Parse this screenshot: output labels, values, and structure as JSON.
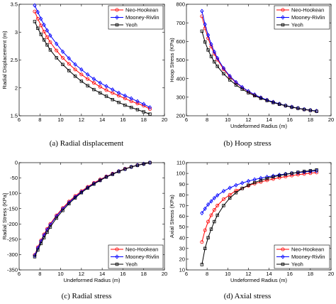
{
  "figure": {
    "panels": [
      {
        "caption": "(a) Radial displacement"
      },
      {
        "caption": "(b) Hoop stress"
      },
      {
        "caption": "(c) Radial stress"
      },
      {
        "caption": "(d) Axial stress"
      }
    ]
  },
  "chart_data": [
    {
      "type": "line",
      "title": "",
      "caption": "(a) Radial displacement",
      "xlabel": "",
      "ylabel": "Radial Displacement (m)",
      "xlim": [
        6,
        20
      ],
      "ylim": [
        1.5,
        3.5
      ],
      "xticks": [
        6,
        8,
        10,
        12,
        14,
        16,
        18,
        20
      ],
      "yticks": [
        1.5,
        2,
        2.5,
        3,
        3.5
      ],
      "grid": false,
      "legend": "top-right",
      "x": [
        7.5,
        7.8,
        8.1,
        8.4,
        8.7,
        9.0,
        9.6,
        10.2,
        10.8,
        11.4,
        12.0,
        12.6,
        13.2,
        13.8,
        14.4,
        15.0,
        15.6,
        16.2,
        16.8,
        17.4,
        18.0,
        18.6
      ],
      "series": [
        {
          "name": "Neo-Hookean",
          "color": "#ff0000",
          "marker": "circle",
          "values": [
            3.37,
            3.24,
            3.12,
            3.01,
            2.91,
            2.82,
            2.67,
            2.54,
            2.43,
            2.33,
            2.24,
            2.16,
            2.09,
            2.02,
            1.96,
            1.91,
            1.86,
            1.81,
            1.76,
            1.72,
            1.68,
            1.62
          ]
        },
        {
          "name": "Mooney-Rivlin",
          "color": "#0000ff",
          "marker": "diamond",
          "values": [
            3.48,
            3.36,
            3.24,
            3.13,
            3.03,
            2.94,
            2.79,
            2.65,
            2.53,
            2.42,
            2.33,
            2.24,
            2.16,
            2.09,
            2.03,
            1.97,
            1.91,
            1.86,
            1.81,
            1.76,
            1.71,
            1.65
          ]
        },
        {
          "name": "Yeoh",
          "color": "#000000",
          "marker": "square",
          "values": [
            3.19,
            3.07,
            2.96,
            2.86,
            2.77,
            2.68,
            2.54,
            2.42,
            2.31,
            2.21,
            2.12,
            2.04,
            1.97,
            1.91,
            1.85,
            1.79,
            1.74,
            1.69,
            1.65,
            1.61,
            1.57,
            1.53
          ]
        }
      ]
    },
    {
      "type": "line",
      "title": "",
      "caption": "(b) Hoop stress",
      "xlabel": "Undeformed Radius (m)",
      "ylabel": "Hoop Stress (KPa)",
      "xlim": [
        6,
        20
      ],
      "ylim": [
        200,
        800
      ],
      "xticks": [
        6,
        8,
        10,
        12,
        14,
        16,
        18,
        20
      ],
      "yticks": [
        200,
        300,
        400,
        500,
        600,
        700,
        800
      ],
      "grid": false,
      "legend": "top-right",
      "x": [
        7.5,
        7.8,
        8.1,
        8.4,
        8.7,
        9.0,
        9.6,
        10.2,
        10.8,
        11.4,
        12.0,
        12.6,
        13.2,
        13.8,
        14.4,
        15.0,
        15.6,
        16.2,
        16.8,
        17.4,
        18.0,
        18.6
      ],
      "series": [
        {
          "name": "Neo-Hookean",
          "color": "#ff0000",
          "marker": "circle",
          "values": [
            735,
            670,
            617,
            572,
            534,
            502,
            450,
            410,
            378,
            352,
            330,
            312,
            297,
            284,
            273,
            263,
            254,
            247,
            240,
            234,
            229,
            225
          ]
        },
        {
          "name": "Mooney-Rivlin",
          "color": "#0000ff",
          "marker": "diamond",
          "values": [
            763,
            692,
            634,
            585,
            544,
            510,
            456,
            414,
            381,
            354,
            332,
            314,
            298,
            285,
            274,
            264,
            255,
            248,
            241,
            235,
            230,
            226
          ]
        },
        {
          "name": "Yeoh",
          "color": "#000000",
          "marker": "square",
          "values": [
            655,
            597,
            554,
            519,
            490,
            466,
            426,
            393,
            366,
            343,
            324,
            308,
            294,
            282,
            271,
            262,
            254,
            246,
            240,
            234,
            229,
            224
          ]
        }
      ]
    },
    {
      "type": "line",
      "title": "",
      "caption": "(c) Radial stress",
      "xlabel": "Undeformed Radius (m)",
      "ylabel": "Radial Stress (KPa)",
      "xlim": [
        6,
        20
      ],
      "ylim": [
        -350,
        0
      ],
      "xticks": [
        6,
        8,
        10,
        12,
        14,
        16,
        18,
        20
      ],
      "yticks": [
        -350,
        -300,
        -250,
        -200,
        -150,
        -100,
        -50,
        0
      ],
      "grid": false,
      "legend": "bottom-right",
      "x": [
        7.5,
        7.8,
        8.1,
        8.4,
        8.7,
        9.0,
        9.6,
        10.2,
        10.8,
        11.4,
        12.0,
        12.6,
        13.2,
        13.8,
        14.4,
        15.0,
        15.6,
        16.2,
        16.8,
        17.4,
        18.0,
        18.6
      ],
      "series": [
        {
          "name": "Neo-Hookean",
          "color": "#ff0000",
          "marker": "circle",
          "values": [
            -301,
            -276,
            -254,
            -234,
            -216,
            -200,
            -172,
            -148,
            -127,
            -109,
            -93,
            -79,
            -66,
            -55,
            -45,
            -36,
            -28,
            -20,
            -14,
            -8,
            -4,
            0
          ]
        },
        {
          "name": "Mooney-Rivlin",
          "color": "#0000ff",
          "marker": "diamond",
          "values": [
            -303,
            -279,
            -257,
            -237,
            -219,
            -203,
            -175,
            -151,
            -130,
            -112,
            -96,
            -81,
            -68,
            -57,
            -46,
            -37,
            -28,
            -21,
            -14,
            -8,
            -4,
            0
          ]
        },
        {
          "name": "Yeoh",
          "color": "#000000",
          "marker": "square",
          "values": [
            -307,
            -285,
            -264,
            -245,
            -227,
            -210,
            -181,
            -156,
            -134,
            -115,
            -98,
            -83,
            -70,
            -58,
            -47,
            -38,
            -29,
            -21,
            -14,
            -9,
            -4,
            0
          ]
        }
      ]
    },
    {
      "type": "line",
      "title": "",
      "caption": "(d) Axial stress",
      "xlabel": "Undeformed Radius (m)",
      "ylabel": "Axial Stress (KPa)",
      "xlim": [
        6,
        20
      ],
      "ylim": [
        10,
        110
      ],
      "xticks": [
        6,
        8,
        10,
        12,
        14,
        16,
        18,
        20
      ],
      "yticks": [
        10,
        20,
        30,
        40,
        50,
        60,
        70,
        80,
        90,
        100,
        110
      ],
      "grid": false,
      "legend": "bottom-right",
      "x": [
        7.5,
        7.8,
        8.1,
        8.4,
        8.7,
        9.0,
        9.6,
        10.2,
        10.8,
        11.4,
        12.0,
        12.6,
        13.2,
        13.8,
        14.4,
        15.0,
        15.6,
        16.2,
        16.8,
        17.4,
        18.0,
        18.6
      ],
      "series": [
        {
          "name": "Neo-Hookean",
          "color": "#ff0000",
          "marker": "circle",
          "values": [
            36,
            47,
            55,
            61,
            66,
            70,
            76,
            80,
            84,
            86,
            88.5,
            90.5,
            92,
            93.5,
            94.8,
            96,
            97,
            98,
            98.8,
            99.5,
            100.2,
            100.8
          ]
        },
        {
          "name": "Mooney-Rivlin",
          "color": "#0000ff",
          "marker": "diamond",
          "values": [
            63,
            67,
            71,
            74,
            77,
            79.5,
            83.5,
            86.5,
            89,
            91,
            92.8,
            94.3,
            95.6,
            96.7,
            97.7,
            98.6,
            99.4,
            100.1,
            100.7,
            101.3,
            101.9,
            102.4
          ]
        },
        {
          "name": "Yeoh",
          "color": "#000000",
          "marker": "square",
          "values": [
            15,
            30,
            40,
            48,
            55,
            61,
            70,
            77,
            82,
            86,
            89,
            91.5,
            93.5,
            95.3,
            96.8,
            98,
            99.1,
            100.1,
            101,
            101.8,
            102.5,
            103.2
          ]
        }
      ]
    }
  ]
}
